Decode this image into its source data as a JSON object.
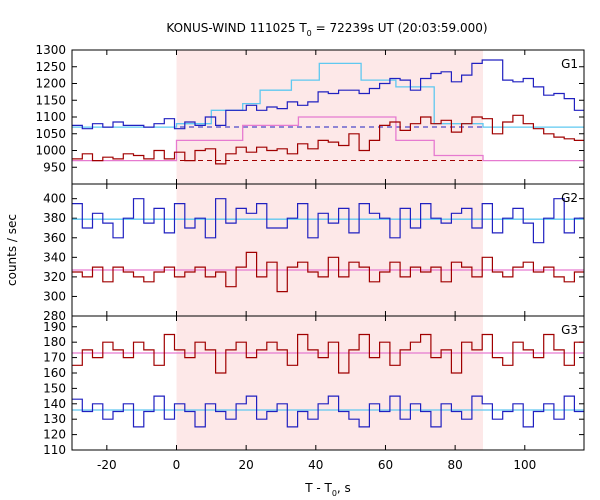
{
  "chart_data": {
    "type": "line",
    "title": "KONUS-WIND 111025 T₀ = 72239s UT (20:03:59.000)",
    "title_parts": {
      "pre": "KONUS-WIND 111025 T",
      "sub": "0",
      "post": " = 72239s UT (20:03:59.000)"
    },
    "xlabel_parts": {
      "pre": "T - T",
      "sub": "0",
      "post": ", s"
    },
    "ylabel": "counts / sec",
    "xlim": [
      -30,
      117
    ],
    "xticks": [
      -20,
      0,
      20,
      40,
      60,
      80,
      100
    ],
    "highlight_interval": [
      0,
      88
    ],
    "colors": {
      "high": "#a00000",
      "low": "#2020c0",
      "fit_high": "#e67ad0",
      "fit_low": "#5fc8f0",
      "highlight": "#fde8e8"
    },
    "panels": [
      {
        "label": "G1",
        "ylim": [
          900,
          1300
        ],
        "yticks": [
          950,
          1000,
          1050,
          1100,
          1150,
          1200,
          1250,
          1300
        ],
        "x_start": -30,
        "bin_width": 2.944,
        "series": [
          {
            "role": "low",
            "values": [
              1075,
              1065,
              1080,
              1070,
              1085,
              1075,
              1075,
              1070,
              1080,
              1095,
              1065,
              1085,
              1075,
              1100,
              1075,
              1120,
              1120,
              1135,
              1120,
              1130,
              1125,
              1145,
              1135,
              1145,
              1175,
              1170,
              1180,
              1180,
              1170,
              1185,
              1200,
              1215,
              1210,
              1180,
              1215,
              1230,
              1235,
              1205,
              1225,
              1260,
              1270,
              1270,
              1210,
              1205,
              1215,
              1190,
              1165,
              1170,
              1155,
              1120,
              1110,
              1125,
              1100,
              1085,
              1075,
              1065,
              1095,
              1120,
              1075,
              1080,
              1085,
              1080,
              1105,
              1080,
              1065,
              1065,
              1085,
              1070,
              1085,
              1080,
              1085,
              1085,
              1075,
              1080,
              1075,
              1070,
              1070,
              1075,
              1065,
              1070,
              1075,
              1070,
              1065,
              1075,
              1065,
              1060
            ]
          },
          {
            "role": "high",
            "values": [
              975,
              990,
              970,
              980,
              975,
              990,
              985,
              975,
              1000,
              975,
              995,
              970,
              1000,
              1005,
              960,
              990,
              1010,
              995,
              1010,
              1000,
              1005,
              990,
              1020,
              1005,
              1030,
              1025,
              1015,
              1050,
              1000,
              1030,
              1075,
              1085,
              1060,
              1080,
              1100,
              1080,
              1090,
              1055,
              1080,
              1100,
              1095,
              1050,
              1085,
              1105,
              1080,
              1065,
              1050,
              1040,
              1035,
              1030,
              1015,
              1005,
              990,
              995,
              985,
              965,
              980,
              975,
              1005,
              980,
              970,
              975,
              1000,
              985,
              975,
              990,
              985,
              965,
              985,
              970,
              980,
              990,
              980,
              1000,
              985,
              975,
              965,
              970,
              960,
              975,
              970,
              965,
              960,
              970,
              960,
              980
            ]
          }
        ],
        "fits": [
          {
            "role": "fit_low",
            "segments": [
              [
                -30,
                0,
                1070
              ],
              [
                0,
                10,
                1080
              ],
              [
                10,
                19,
                1120
              ],
              [
                19,
                24,
                1140
              ],
              [
                24,
                33,
                1180
              ],
              [
                33,
                41,
                1210
              ],
              [
                41,
                47,
                1260
              ],
              [
                47,
                53,
                1260
              ],
              [
                53,
                63,
                1210
              ],
              [
                63,
                74,
                1190
              ],
              [
                74,
                88,
                1080
              ],
              [
                88,
                117,
                1070
              ]
            ]
          },
          {
            "role": "fit_high",
            "segments": [
              [
                -30,
                0,
                970
              ],
              [
                0,
                19,
                1030
              ],
              [
                19,
                35,
                1075
              ],
              [
                35,
                53,
                1100
              ],
              [
                53,
                63,
                1100
              ],
              [
                63,
                74,
                1030
              ],
              [
                74,
                88,
                985
              ],
              [
                88,
                117,
                970
              ]
            ]
          }
        ],
        "backgrounds": [
          {
            "role": "low",
            "value": 1070
          },
          {
            "role": "high",
            "value": 970
          }
        ]
      },
      {
        "label": "G2",
        "ylim": [
          280,
          415
        ],
        "yticks": [
          280,
          300,
          320,
          340,
          360,
          380,
          400
        ],
        "x_start": -30,
        "bin_width": 2.944,
        "series": [
          {
            "role": "low",
            "values": [
              395,
              370,
              385,
              375,
              360,
              380,
              400,
              375,
              390,
              365,
              395,
              370,
              380,
              360,
              400,
              375,
              390,
              385,
              395,
              370,
              370,
              380,
              395,
              360,
              385,
              375,
              390,
              365,
              395,
              385,
              380,
              360,
              390,
              370,
              395,
              380,
              375,
              385,
              390,
              370,
              395,
              365,
              380,
              390,
              375,
              355,
              380,
              400,
              365,
              380,
              395,
              370,
              385,
              360,
              375,
              395,
              380,
              390,
              365,
              375,
              400,
              370,
              385,
              360,
              380,
              395,
              375,
              365,
              390,
              380,
              400,
              375,
              385,
              370,
              360,
              395,
              380,
              385,
              370,
              390,
              395,
              375,
              360,
              385,
              380,
              395
            ]
          },
          {
            "role": "high",
            "values": [
              325,
              320,
              330,
              315,
              330,
              325,
              320,
              315,
              325,
              330,
              320,
              325,
              330,
              320,
              325,
              310,
              330,
              345,
              320,
              335,
              305,
              330,
              335,
              325,
              320,
              340,
              320,
              335,
              330,
              315,
              325,
              335,
              320,
              330,
              325,
              330,
              315,
              335,
              330,
              320,
              340,
              325,
              320,
              330,
              335,
              325,
              330,
              320,
              315,
              325,
              335,
              330,
              340,
              325,
              320,
              330,
              335,
              315,
              325,
              340,
              330,
              320,
              325,
              345,
              330,
              320,
              335,
              315,
              325,
              330,
              320,
              335,
              325,
              330,
              320,
              340,
              325,
              320,
              330,
              335,
              325,
              330,
              320,
              340,
              335,
              330
            ]
          }
        ],
        "fits": [
          {
            "role": "fit_low",
            "segments": [
              [
                -30,
                117,
                379
              ]
            ]
          },
          {
            "role": "fit_high",
            "segments": [
              [
                -30,
                117,
                327
              ]
            ]
          }
        ]
      },
      {
        "label": "G3",
        "ylim": [
          110,
          197
        ],
        "yticks": [
          110,
          120,
          130,
          140,
          150,
          160,
          170,
          180,
          190
        ],
        "x_start": -30,
        "bin_width": 2.944,
        "series": [
          {
            "role": "high",
            "values": [
              165,
              175,
              170,
              180,
              175,
              170,
              180,
              175,
              165,
              185,
              175,
              170,
              180,
              175,
              160,
              175,
              180,
              170,
              175,
              180,
              175,
              165,
              185,
              175,
              170,
              180,
              160,
              175,
              185,
              170,
              180,
              165,
              175,
              180,
              185,
              170,
              175,
              160,
              180,
              175,
              185,
              170,
              165,
              180,
              175,
              170,
              185,
              175,
              165,
              180,
              170,
              175,
              180,
              170,
              185,
              175,
              165,
              180,
              170,
              175,
              185,
              170,
              180,
              175,
              165,
              180,
              175,
              185,
              170,
              175,
              180,
              165,
              175,
              185,
              170,
              180,
              175,
              170,
              185,
              175,
              170,
              180,
              175,
              180,
              170,
              175
            ]
          },
          {
            "role": "low",
            "values": [
              143,
              135,
              140,
              130,
              135,
              140,
              125,
              135,
              145,
              130,
              140,
              135,
              125,
              140,
              135,
              130,
              140,
              145,
              130,
              135,
              140,
              125,
              135,
              130,
              140,
              145,
              135,
              130,
              125,
              140,
              135,
              145,
              130,
              140,
              135,
              125,
              140,
              135,
              130,
              145,
              140,
              130,
              135,
              140,
              125,
              135,
              140,
              130,
              145,
              135,
              130,
              140,
              135,
              125,
              140,
              145,
              135,
              130,
              140,
              135,
              125,
              140,
              130,
              145,
              135,
              140,
              130,
              135,
              125,
              140,
              145,
              135,
              130,
              140,
              135,
              145,
              130,
              135,
              140,
              125,
              135,
              140,
              130,
              135,
              140,
              145
            ]
          }
        ],
        "fits": [
          {
            "role": "fit_high",
            "segments": [
              [
                -30,
                117,
                173
              ]
            ]
          },
          {
            "role": "fit_low",
            "segments": [
              [
                -30,
                117,
                136
              ]
            ]
          }
        ]
      }
    ]
  }
}
